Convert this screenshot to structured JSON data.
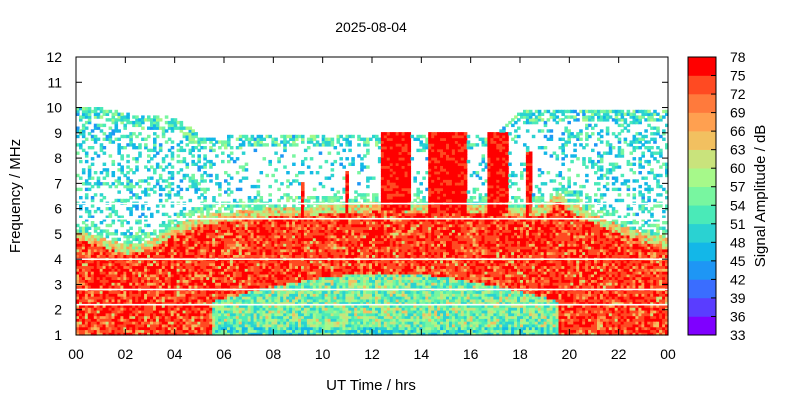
{
  "chart_data": {
    "type": "heatmap",
    "title": "2025-08-04",
    "xlabel": "UT Time / hrs",
    "ylabel": "Frequency / MHz",
    "colorbar_label": "Signal Amplitude / dB",
    "xlim": [
      0,
      24
    ],
    "ylim": [
      1,
      12
    ],
    "x_ticks": [
      "00",
      "02",
      "04",
      "06",
      "08",
      "10",
      "12",
      "14",
      "16",
      "18",
      "20",
      "22",
      "00"
    ],
    "y_ticks": [
      "1",
      "2",
      "3",
      "4",
      "5",
      "6",
      "7",
      "8",
      "9",
      "10",
      "11",
      "12"
    ],
    "color_range": [
      33,
      78
    ],
    "colorbar_ticks": [
      "33",
      "36",
      "39",
      "42",
      "45",
      "48",
      "51",
      "54",
      "57",
      "60",
      "63",
      "66",
      "69",
      "72",
      "75",
      "78"
    ],
    "colormap": [
      "#7f00ff",
      "#5a3dff",
      "#3a6dff",
      "#1e96f5",
      "#13b7e8",
      "#2ad2d2",
      "#4aeab8",
      "#78f6a0",
      "#a6f98a",
      "#c9e37c",
      "#f2c060",
      "#ffa050",
      "#ff7a3c",
      "#ff4a22",
      "#ff0000"
    ],
    "profile": {
      "x_hours": [
        0,
        1,
        2,
        3,
        4,
        5,
        6,
        7,
        8,
        9,
        10,
        11,
        12,
        13,
        14,
        15,
        16,
        17,
        18,
        19,
        19.5,
        20,
        21,
        22,
        23,
        24
      ],
      "strong_echo_top_mhz": [
        5.1,
        4.8,
        4.5,
        4.7,
        5.3,
        5.7,
        5.8,
        5.9,
        6.0,
        6.0,
        6.1,
        6.1,
        6.2,
        6.2,
        6.1,
        6.1,
        6.1,
        6.1,
        6.0,
        6.1,
        6.6,
        6.2,
        5.7,
        5.3,
        5.0,
        4.8
      ],
      "noise_ceiling_mhz": [
        10.0,
        10.0,
        9.7,
        9.6,
        9.6,
        8.8,
        8.8,
        8.9,
        8.9,
        8.9,
        8.9,
        8.9,
        8.9,
        8.9,
        8.9,
        8.9,
        8.9,
        8.9,
        9.8,
        9.9,
        9.9,
        9.9,
        9.9,
        9.9,
        9.9,
        9.9
      ]
    },
    "spikes": [
      {
        "x_hours": 12.9,
        "width_hours": 1.1,
        "top_mhz": 9.0
      },
      {
        "x_hours": 15.0,
        "width_hours": 1.6,
        "top_mhz": 9.0
      },
      {
        "x_hours": 17.0,
        "width_hours": 0.8,
        "top_mhz": 9.0
      },
      {
        "x_hours": 18.35,
        "width_hours": 0.25,
        "top_mhz": 8.2
      },
      {
        "x_hours": 10.9,
        "width_hours": 0.15,
        "top_mhz": 7.4
      },
      {
        "x_hours": 9.1,
        "width_hours": 0.12,
        "top_mhz": 7.0
      }
    ],
    "gaps_mhz": [
      6.2,
      5.6,
      4.0,
      2.8,
      2.2
    ],
    "grid": false,
    "legend": "colorbar-right"
  }
}
